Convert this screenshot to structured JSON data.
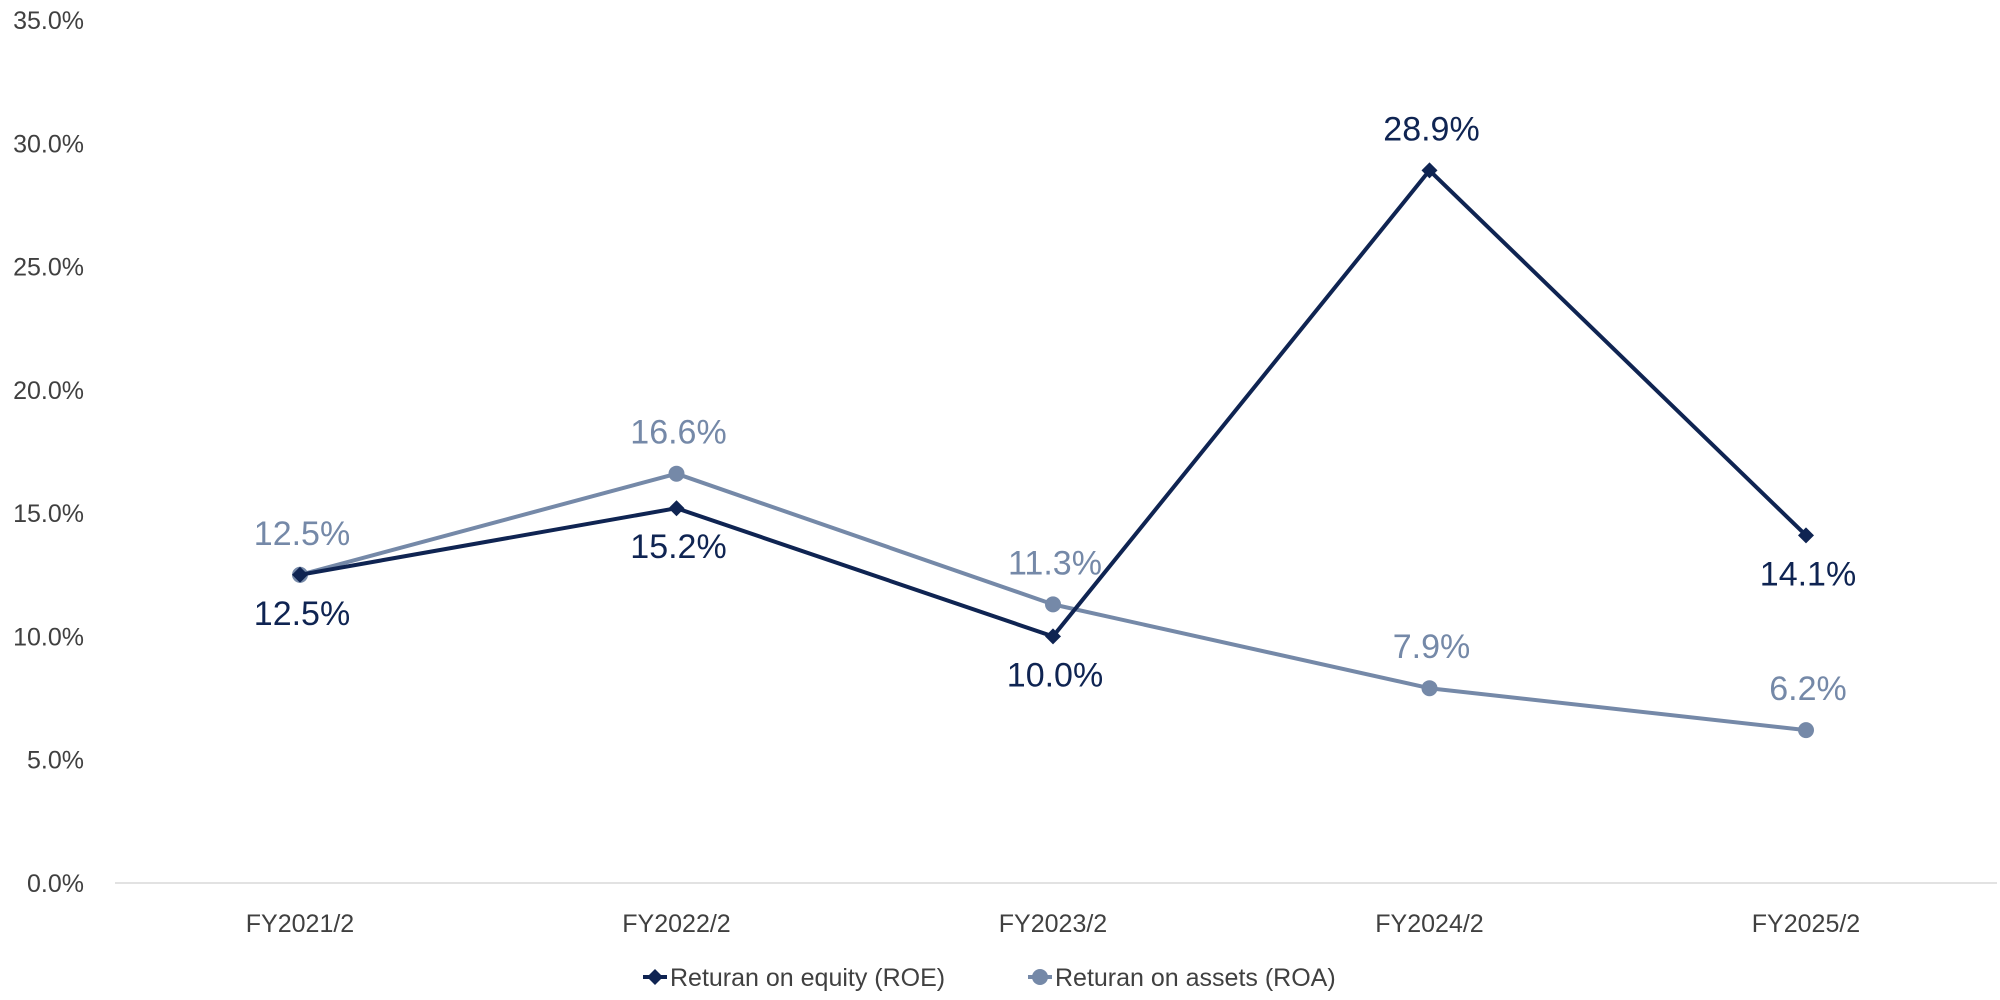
{
  "chart_data": {
    "type": "line",
    "title": "",
    "xlabel": "",
    "ylabel": "",
    "categories": [
      "FY2021/2",
      "FY2022/2",
      "FY2023/2",
      "FY2024/2",
      "FY2025/2"
    ],
    "ylim": [
      0,
      35
    ],
    "y_ticks": [
      "0.0%",
      "5.0%",
      "10.0%",
      "15.0%",
      "20.0%",
      "25.0%",
      "30.0%",
      "35.0%"
    ],
    "y_tick_values": [
      0,
      5,
      10,
      15,
      20,
      25,
      30,
      35
    ],
    "grid": false,
    "legend_position": "bottom",
    "series": [
      {
        "name": "Returan on equity (ROE)",
        "values": [
          12.5,
          15.2,
          10.0,
          28.9,
          14.1
        ],
        "labels": [
          "12.5%",
          "15.2%",
          "10.0%",
          "28.9%",
          "14.1%"
        ],
        "color": "#0f2452",
        "marker": "diamond",
        "label_side": [
          "below",
          "below",
          "below",
          "above",
          "below"
        ]
      },
      {
        "name": "Returan on assets (ROA)",
        "values": [
          12.5,
          16.6,
          11.3,
          7.9,
          6.2
        ],
        "labels": [
          "12.5%",
          "16.6%",
          "11.3%",
          "7.9%",
          "6.2%"
        ],
        "color": "#7589a8",
        "marker": "circle",
        "label_side": [
          "above",
          "above",
          "above",
          "above",
          "above"
        ]
      }
    ]
  }
}
